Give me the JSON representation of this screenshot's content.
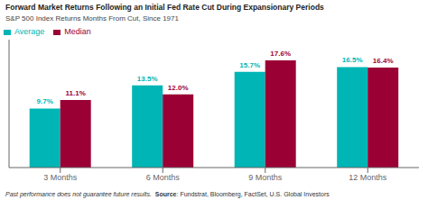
{
  "chart_data": {
    "type": "bar",
    "title": "Forward Market Returns Following an Initial Fed Rate Cut During Expansionary Periods",
    "subtitle": "S&P 500 Index Returns Months From Cut, Since 1971",
    "categories": [
      "3 Months",
      "6 Months",
      "9 Months",
      "12 Months"
    ],
    "series": [
      {
        "name": "Average",
        "color": "#00B5B5",
        "values": [
          9.7,
          13.5,
          15.7,
          16.5
        ],
        "value_labels": [
          "9.7%",
          "13.5%",
          "15.7%",
          "16.5%"
        ]
      },
      {
        "name": "Median",
        "color": "#9B0035",
        "values": [
          11.1,
          12.0,
          17.6,
          16.4
        ],
        "value_labels": [
          "11.1%",
          "12.0%",
          "17.6%",
          "16.4%"
        ]
      }
    ],
    "ylim": [
      0,
      21
    ],
    "yticks": [],
    "grid": false,
    "legend": "upper left",
    "data_labels": true,
    "tick_labels": "x",
    "annotations": [
      "Past performance does not guarantee future results.",
      "Source",
      ": Fundstrat, Bloomberg, FactSet, U.S. Global Investors"
    ]
  }
}
